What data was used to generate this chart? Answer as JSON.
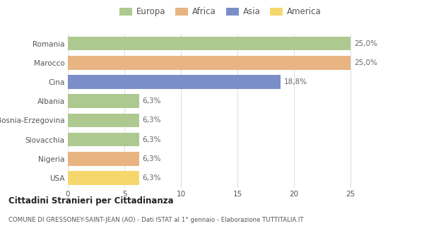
{
  "categories": [
    "Romania",
    "Marocco",
    "Cina",
    "Albania",
    "Bosnia-Erzegovina",
    "Slovacchia",
    "Nigeria",
    "USA"
  ],
  "values": [
    25.0,
    25.0,
    18.8,
    6.3,
    6.3,
    6.3,
    6.3,
    6.3
  ],
  "colors": [
    "#adc990",
    "#e8b482",
    "#7b8ec8",
    "#adc990",
    "#adc990",
    "#adc990",
    "#e8b482",
    "#f5d76e"
  ],
  "labels": [
    "25,0%",
    "25,0%",
    "18,8%",
    "6,3%",
    "6,3%",
    "6,3%",
    "6,3%",
    "6,3%"
  ],
  "legend": [
    {
      "label": "Europa",
      "color": "#adc990"
    },
    {
      "label": "Africa",
      "color": "#e8b482"
    },
    {
      "label": "Asia",
      "color": "#7b8ec8"
    },
    {
      "label": "America",
      "color": "#f5d76e"
    }
  ],
  "xlim": [
    0,
    27
  ],
  "xticks": [
    0,
    5,
    10,
    15,
    20,
    25
  ],
  "title_bold": "Cittadini Stranieri per Cittadinanza",
  "subtitle": "COMUNE DI GRESSONEY-SAINT-JEAN (AO) - Dati ISTAT al 1° gennaio - Elaborazione TUTTITALIA.IT",
  "background_color": "#ffffff",
  "grid_color": "#e0e0e0",
  "label_fontsize": 7.5,
  "tick_fontsize": 7.5,
  "bar_height": 0.72
}
